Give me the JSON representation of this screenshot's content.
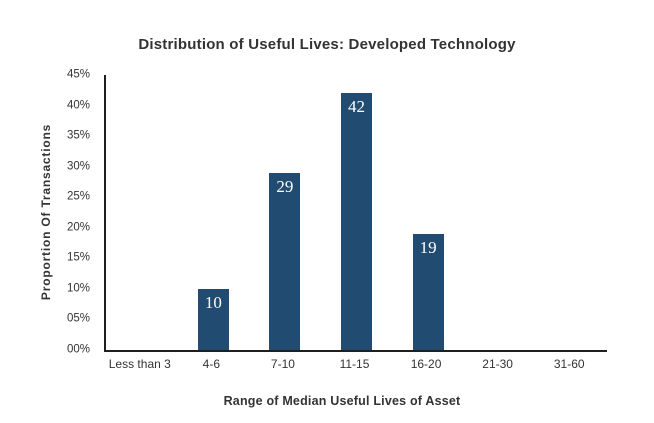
{
  "chart_data": {
    "type": "bar",
    "title": "Distribution of Useful Lives: Developed Technology",
    "xlabel": "Range of Median Useful Lives of Asset",
    "ylabel": "Proportion Of Transactions",
    "categories": [
      "Less than 3",
      "4-6",
      "7-10",
      "11-15",
      "16-20",
      "21-30",
      "31-60"
    ],
    "values": [
      0,
      10,
      29,
      42,
      19,
      0,
      0
    ],
    "bar_labels": [
      "",
      "10",
      "29",
      "42",
      "19",
      "",
      ""
    ],
    "ylim": [
      0,
      45
    ],
    "ytick_step": 5,
    "ytick_labels": [
      "00%",
      "05%",
      "10%",
      "15%",
      "20%",
      "25%",
      "30%",
      "35%",
      "40%",
      "45%"
    ],
    "grid": false,
    "legend": "none",
    "colors": {
      "bar": "#214B70",
      "bar_label": "#FFFFFF",
      "axis_line": "#1F1F1F",
      "text": "#333333",
      "background": "#FFFFFF"
    }
  }
}
